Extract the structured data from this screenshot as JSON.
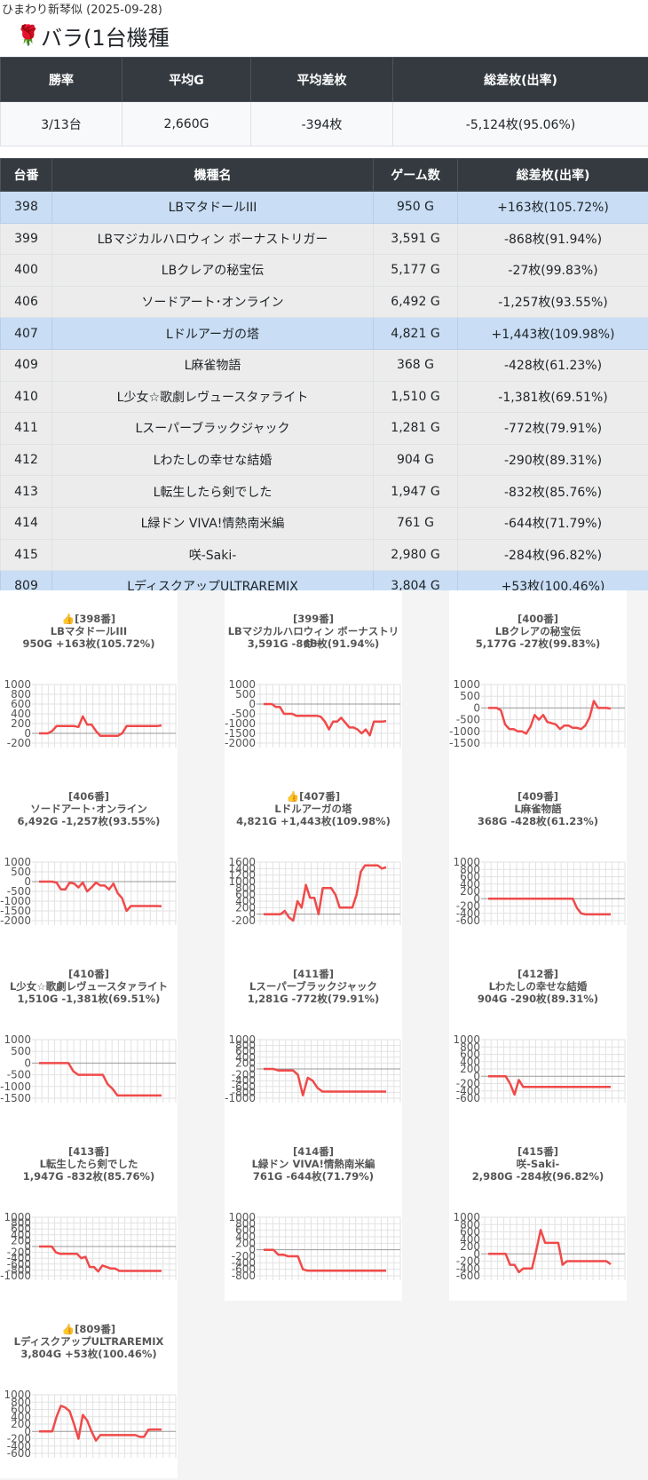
{
  "subtitle": "ひまわり新琴似 (2025-09-28)",
  "title_icon": "rose-icon",
  "title": "バラ(1台機種",
  "summary": {
    "headers": [
      "勝率",
      "平均G",
      "平均差枚",
      "総差枚(出率)"
    ],
    "values": [
      "3/13台",
      "2,660G",
      "-394枚",
      "-5,124枚(95.06%)"
    ]
  },
  "machine_table": {
    "headers": [
      "台番",
      "機種名",
      "ゲーム数",
      "総差枚(出率)"
    ],
    "rows": [
      {
        "no": "398",
        "name": "LBマタドールIII",
        "games": "950 G",
        "diff": "+163枚(105.72%)",
        "highlight": true
      },
      {
        "no": "399",
        "name": "LBマジカルハロウィン ボーナストリガー",
        "games": "3,591 G",
        "diff": "-868枚(91.94%)",
        "highlight": false
      },
      {
        "no": "400",
        "name": "LBクレアの秘宝伝",
        "games": "5,177 G",
        "diff": "-27枚(99.83%)",
        "highlight": false
      },
      {
        "no": "406",
        "name": "ソードアート･オンライン",
        "games": "6,492 G",
        "diff": "-1,257枚(93.55%)",
        "highlight": false
      },
      {
        "no": "407",
        "name": "Lドルアーガの塔",
        "games": "4,821 G",
        "diff": "+1,443枚(109.98%)",
        "highlight": true
      },
      {
        "no": "409",
        "name": "L麻雀物語",
        "games": "368 G",
        "diff": "-428枚(61.23%)",
        "highlight": false
      },
      {
        "no": "410",
        "name": "L少女☆歌劇レヴュースタァライト",
        "games": "1,510 G",
        "diff": "-1,381枚(69.51%)",
        "highlight": false
      },
      {
        "no": "411",
        "name": "Lスーパーブラックジャック",
        "games": "1,281 G",
        "diff": "-772枚(79.91%)",
        "highlight": false
      },
      {
        "no": "412",
        "name": "Lわたしの幸せな結婚",
        "games": "904 G",
        "diff": "-290枚(89.31%)",
        "highlight": false
      },
      {
        "no": "413",
        "name": "L転生したら剣でした",
        "games": "1,947 G",
        "diff": "-832枚(85.76%)",
        "highlight": false
      },
      {
        "no": "414",
        "name": "L緑ドン VIVA!情熱南米編",
        "games": "761 G",
        "diff": "-644枚(71.79%)",
        "highlight": false
      },
      {
        "no": "415",
        "name": "咲-Saki-",
        "games": "2,980 G",
        "diff": "-284枚(96.82%)",
        "highlight": false
      },
      {
        "no": "809",
        "name": "LディスクアップULTRAREMIX",
        "games": "3,804 G",
        "diff": "+53枚(100.46%)",
        "highlight": true
      }
    ]
  },
  "colors": {
    "line": "#f04a4a",
    "header_bg": "#343a40",
    "highlight_row": "#c9def5"
  },
  "chart_data": [
    {
      "type": "line",
      "title_no": "[398番]",
      "thumb": true,
      "name": "LBマタドールIII",
      "stats": "950G +163枚(105.72%)",
      "yticks": [
        1000,
        800,
        600,
        400,
        200,
        0,
        -200
      ],
      "ylim": [
        -200,
        1000
      ],
      "values": [
        0,
        0,
        0,
        50,
        150,
        150,
        150,
        150,
        150,
        130,
        350,
        180,
        180,
        50,
        -50,
        -50,
        -50,
        -50,
        -50,
        0,
        150,
        150,
        150,
        150,
        150,
        150,
        150,
        150,
        163
      ]
    },
    {
      "type": "line",
      "title_no": "[399番]",
      "thumb": false,
      "name": "LBマジカルハロウィン ボーナストリガー",
      "stats": "3,591G -868枚(91.94%)",
      "yticks": [
        1000,
        500,
        0,
        -500,
        -1000,
        -1500,
        -2000
      ],
      "ylim": [
        -2000,
        1000
      ],
      "values": [
        0,
        0,
        0,
        -150,
        -150,
        -500,
        -500,
        -500,
        -600,
        -600,
        -600,
        -600,
        -600,
        -600,
        -650,
        -900,
        -1300,
        -900,
        -900,
        -700,
        -950,
        -1200,
        -1200,
        -1300,
        -1500,
        -1300,
        -1600,
        -900,
        -900,
        -900,
        -868
      ]
    },
    {
      "type": "line",
      "title_no": "[400番]",
      "thumb": false,
      "name": "LBクレアの秘宝伝",
      "stats": "5,177G -27枚(99.83%)",
      "yticks": [
        1000,
        500,
        0,
        -500,
        -1000,
        -1500
      ],
      "ylim": [
        -1500,
        1000
      ],
      "values": [
        0,
        0,
        0,
        -100,
        -700,
        -900,
        -900,
        -1000,
        -1000,
        -1100,
        -800,
        -300,
        -500,
        -300,
        -600,
        -650,
        -700,
        -900,
        -750,
        -750,
        -850,
        -850,
        -900,
        -750,
        -400,
        300,
        0,
        0,
        0,
        -27
      ]
    },
    {
      "type": "line",
      "title_no": "[406番]",
      "thumb": false,
      "name": "ソードアート･オンライン",
      "stats": "6,492G -1,257枚(93.55%)",
      "yticks": [
        1000,
        500,
        0,
        -500,
        -1000,
        -1500,
        -2000
      ],
      "ylim": [
        -2000,
        1000
      ],
      "values": [
        0,
        0,
        0,
        0,
        -50,
        -400,
        -400,
        -50,
        -100,
        -300,
        -50,
        -500,
        -300,
        -50,
        -200,
        -200,
        -400,
        -100,
        -600,
        -850,
        -1500,
        -1250,
        -1250,
        -1250,
        -1250,
        -1250,
        -1250,
        -1250,
        -1257
      ]
    },
    {
      "type": "line",
      "title_no": "[407番]",
      "thumb": true,
      "name": "Lドルアーガの塔",
      "stats": "4,821G +1,443枚(109.98%)",
      "yticks": [
        1600,
        1400,
        1200,
        1000,
        800,
        600,
        400,
        200,
        0,
        -200
      ],
      "ylim": [
        -200,
        1600
      ],
      "values": [
        0,
        0,
        0,
        0,
        0,
        100,
        -100,
        -200,
        400,
        200,
        900,
        500,
        500,
        0,
        800,
        800,
        800,
        600,
        200,
        200,
        200,
        200,
        600,
        1300,
        1500,
        1500,
        1500,
        1500,
        1400,
        1443
      ]
    },
    {
      "type": "line",
      "title_no": "[409番]",
      "thumb": false,
      "name": "L麻雀物語",
      "stats": "368G -428枚(61.23%)",
      "yticks": [
        1000,
        800,
        600,
        400,
        200,
        0,
        -200,
        -400,
        -600
      ],
      "ylim": [
        -600,
        1000
      ],
      "values": [
        0,
        0,
        0,
        0,
        0,
        0,
        0,
        0,
        0,
        0,
        0,
        0,
        0,
        0,
        0,
        0,
        0,
        0,
        0,
        0,
        0,
        -250,
        -400,
        -428,
        -428,
        -428,
        -428,
        -428,
        -428,
        -428
      ]
    },
    {
      "type": "line",
      "title_no": "[410番]",
      "thumb": false,
      "name": "L少女☆歌劇レヴュースタァライト",
      "stats": "1,510G -1,381枚(69.51%)",
      "yticks": [
        1000,
        500,
        0,
        -500,
        -1000,
        -1500
      ],
      "ylim": [
        -1500,
        1000
      ],
      "values": [
        0,
        0,
        0,
        0,
        0,
        0,
        0,
        -350,
        -500,
        -500,
        -500,
        -500,
        -500,
        -500,
        -900,
        -1100,
        -1381,
        -1381,
        -1381,
        -1381,
        -1381,
        -1381,
        -1381,
        -1381,
        -1381,
        -1381
      ]
    },
    {
      "type": "line",
      "title_no": "[411番]",
      "thumb": false,
      "name": "Lスーパーブラックジャック",
      "stats": "1,281G -772枚(79.91%)",
      "yticks": [
        1000,
        800,
        600,
        400,
        200,
        0,
        -200,
        -400,
        -600,
        -800,
        -1000
      ],
      "ylim": [
        -1000,
        1000
      ],
      "values": [
        0,
        0,
        0,
        -50,
        -50,
        -50,
        -50,
        -200,
        -900,
        -300,
        -400,
        -650,
        -772,
        -772,
        -772,
        -772,
        -772,
        -772,
        -772,
        -772,
        -772,
        -772,
        -772,
        -772,
        -772,
        -772
      ]
    },
    {
      "type": "line",
      "title_no": "[412番]",
      "thumb": false,
      "name": "Lわたしの幸せな結婚",
      "stats": "904G -290枚(89.31%)",
      "yticks": [
        1000,
        800,
        600,
        400,
        200,
        0,
        -200,
        -400,
        -600
      ],
      "ylim": [
        -600,
        1000
      ],
      "values": [
        0,
        0,
        0,
        0,
        0,
        -200,
        -500,
        -100,
        -290,
        -290,
        -290,
        -290,
        -290,
        -290,
        -290,
        -290,
        -290,
        -290,
        -290,
        -290,
        -290,
        -290,
        -290,
        -290,
        -290,
        -290,
        -290,
        -290,
        -290
      ]
    },
    {
      "type": "line",
      "title_no": "[413番]",
      "thumb": false,
      "name": "L転生したら剣でした",
      "stats": "1,947G -832枚(85.76%)",
      "yticks": [
        1000,
        800,
        600,
        400,
        200,
        0,
        -200,
        -400,
        -600,
        -800,
        -1000
      ],
      "ylim": [
        -1000,
        1000
      ],
      "values": [
        0,
        0,
        0,
        0,
        -200,
        -250,
        -250,
        -250,
        -250,
        -250,
        -400,
        -350,
        -700,
        -700,
        -850,
        -650,
        -700,
        -750,
        -750,
        -832,
        -832,
        -832,
        -832,
        -832,
        -832,
        -832,
        -832,
        -832,
        -832,
        -832
      ]
    },
    {
      "type": "line",
      "title_no": "[414番]",
      "thumb": false,
      "name": "L緑ドン VIVA!情熱南米編",
      "stats": "761G -644枚(71.79%)",
      "yticks": [
        1000,
        800,
        600,
        400,
        200,
        0,
        -200,
        -400,
        -600,
        -800
      ],
      "ylim": [
        -800,
        1000
      ],
      "values": [
        0,
        0,
        0,
        -150,
        -150,
        -200,
        -200,
        -200,
        -600,
        -644,
        -644,
        -644,
        -644,
        -644,
        -644,
        -644,
        -644,
        -644,
        -644,
        -644,
        -644,
        -644,
        -644,
        -644,
        -644,
        -644
      ]
    },
    {
      "type": "line",
      "title_no": "[415番]",
      "thumb": false,
      "name": "咲-Saki-",
      "stats": "2,980G -284枚(96.82%)",
      "yticks": [
        1000,
        800,
        600,
        400,
        200,
        0,
        -200,
        -400,
        -600
      ],
      "ylim": [
        -600,
        1000
      ],
      "values": [
        0,
        0,
        0,
        0,
        0,
        -300,
        -300,
        -500,
        -400,
        -400,
        -400,
        100,
        650,
        300,
        300,
        300,
        300,
        -300,
        -200,
        -200,
        -200,
        -200,
        -200,
        -200,
        -200,
        -200,
        -200,
        -200,
        -284
      ]
    },
    {
      "type": "line",
      "title_no": "[809番]",
      "thumb": true,
      "name": "LディスクアップULTRAREMIX",
      "stats": "3,804G +53枚(100.46%)",
      "yticks": [
        1000,
        800,
        600,
        400,
        200,
        0,
        -200,
        -400,
        -600
      ],
      "ylim": [
        -600,
        1000
      ],
      "values": [
        0,
        0,
        0,
        0,
        400,
        700,
        650,
        550,
        200,
        -200,
        450,
        300,
        0,
        -250,
        -100,
        -100,
        -100,
        -100,
        -100,
        -100,
        -100,
        -100,
        -100,
        -150,
        -150,
        50,
        53,
        53,
        53
      ]
    }
  ]
}
